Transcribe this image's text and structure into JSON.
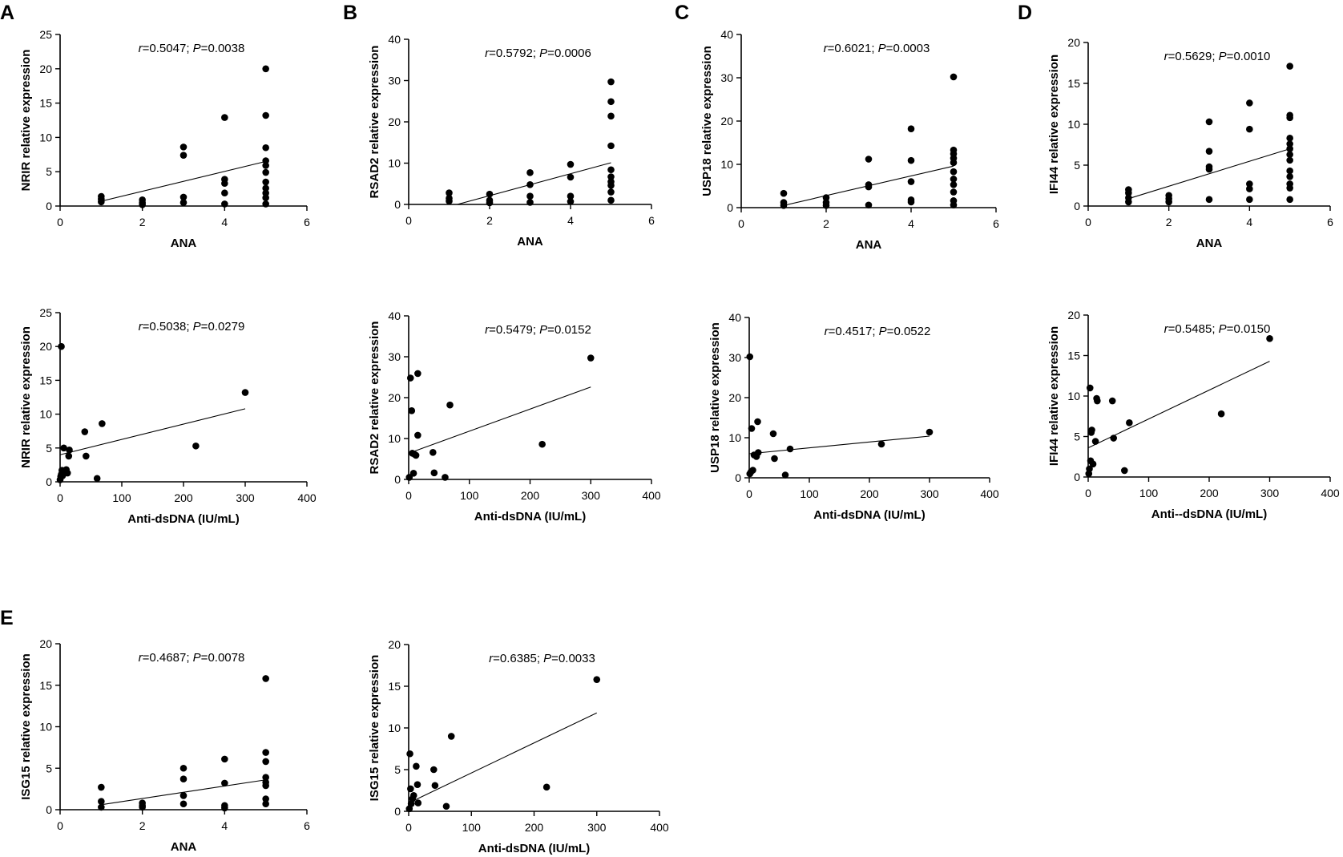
{
  "figure": {
    "panel_letters": [
      "A",
      "B",
      "C",
      "D",
      "E"
    ]
  },
  "chart_data": [
    {
      "id": "A-ana",
      "panel": "A",
      "type": "scatter",
      "ylabel": "NRIR relative expression",
      "xlabel": "ANA",
      "stat": {
        "r": "0.5047",
        "p": "0.0038"
      },
      "xlim": [
        0,
        6
      ],
      "ylim": [
        0,
        25
      ],
      "xticks": [
        0,
        2,
        4,
        6
      ],
      "yticks": [
        0,
        5,
        10,
        15,
        20,
        25
      ],
      "points": [
        [
          1,
          0.6
        ],
        [
          1,
          1.0
        ],
        [
          1,
          1.4
        ],
        [
          2,
          0.2
        ],
        [
          2,
          0.5
        ],
        [
          2,
          0.9
        ],
        [
          3,
          0.5
        ],
        [
          3,
          1.3
        ],
        [
          3,
          7.4
        ],
        [
          3,
          8.6
        ],
        [
          4,
          0.3
        ],
        [
          4,
          1.9
        ],
        [
          4,
          3.3
        ],
        [
          4,
          3.9
        ],
        [
          4,
          12.9
        ],
        [
          5,
          0.3
        ],
        [
          5,
          1.2
        ],
        [
          5,
          1.9
        ],
        [
          5,
          2.6
        ],
        [
          5,
          3.5
        ],
        [
          5,
          4.9
        ],
        [
          5,
          5.9
        ],
        [
          5,
          6.6
        ],
        [
          5,
          8.5
        ],
        [
          5,
          13.2
        ],
        [
          5,
          20.0
        ]
      ],
      "fit": [
        [
          1,
          0.7
        ],
        [
          5,
          6.5
        ]
      ]
    },
    {
      "id": "B-ana",
      "panel": "B",
      "type": "scatter",
      "ylabel": "RSAD2 relative expression",
      "xlabel": "ANA",
      "stat": {
        "r": "0.5792",
        "p": "0.0006"
      },
      "xlim": [
        0,
        6
      ],
      "ylim": [
        0,
        40
      ],
      "xticks": [
        0,
        2,
        4,
        6
      ],
      "yticks": [
        0,
        10,
        20,
        30,
        40
      ],
      "points": [
        [
          1,
          0.8
        ],
        [
          1,
          1.5
        ],
        [
          1,
          2.8
        ],
        [
          2,
          0.4
        ],
        [
          2,
          1.0
        ],
        [
          2,
          2.5
        ],
        [
          3,
          0.5
        ],
        [
          3,
          2.0
        ],
        [
          3,
          4.8
        ],
        [
          3,
          7.7
        ],
        [
          4,
          0.7
        ],
        [
          4,
          2.0
        ],
        [
          4,
          6.6
        ],
        [
          4,
          9.7
        ],
        [
          5,
          1.0
        ],
        [
          5,
          3.0
        ],
        [
          5,
          4.6
        ],
        [
          5,
          5.5
        ],
        [
          5,
          6.7
        ],
        [
          5,
          8.4
        ],
        [
          5,
          14.2
        ],
        [
          5,
          21.4
        ],
        [
          5,
          24.9
        ],
        [
          5,
          29.7
        ]
      ],
      "fit": [
        [
          1.2,
          0
        ],
        [
          5,
          10.1
        ]
      ]
    },
    {
      "id": "C-ana",
      "panel": "C",
      "type": "scatter",
      "ylabel": "USP18 relative expression",
      "xlabel": "ANA",
      "stat": {
        "r": "0.6021",
        "p": "0.0003"
      },
      "xlim": [
        0,
        6
      ],
      "ylim": [
        0,
        40
      ],
      "xticks": [
        0,
        2,
        4,
        6
      ],
      "yticks": [
        0,
        10,
        20,
        30,
        40
      ],
      "points": [
        [
          1,
          0.5
        ],
        [
          1,
          1.2
        ],
        [
          1,
          3.3
        ],
        [
          2,
          0.5
        ],
        [
          2,
          1.2
        ],
        [
          2,
          2.3
        ],
        [
          3,
          0.6
        ],
        [
          3,
          4.8
        ],
        [
          3,
          5.3
        ],
        [
          3,
          11.2
        ],
        [
          4,
          1.3
        ],
        [
          4,
          1.8
        ],
        [
          4,
          6.0
        ],
        [
          4,
          10.9
        ],
        [
          4,
          18.2
        ],
        [
          5,
          0.6
        ],
        [
          5,
          1.6
        ],
        [
          5,
          3.6
        ],
        [
          5,
          5.3
        ],
        [
          5,
          6.6
        ],
        [
          5,
          8.3
        ],
        [
          5,
          10.4
        ],
        [
          5,
          11.4
        ],
        [
          5,
          12.4
        ],
        [
          5,
          13.3
        ],
        [
          5,
          30.2
        ]
      ],
      "fit": [
        [
          1,
          0.5
        ],
        [
          5,
          9.6
        ]
      ]
    },
    {
      "id": "D-ana",
      "panel": "D",
      "type": "scatter",
      "ylabel": "IFI44 relative expression",
      "xlabel": "ANA",
      "stat": {
        "r": "0.5629",
        "p": "0.0010"
      },
      "xlim": [
        0,
        6
      ],
      "ylim": [
        0,
        20
      ],
      "xticks": [
        0,
        2,
        4,
        6
      ],
      "yticks": [
        0,
        5,
        10,
        15,
        20
      ],
      "points": [
        [
          1,
          0.5
        ],
        [
          1,
          1.0
        ],
        [
          1,
          1.6
        ],
        [
          1,
          2.0
        ],
        [
          2,
          0.5
        ],
        [
          2,
          0.9
        ],
        [
          2,
          1.3
        ],
        [
          3,
          0.8
        ],
        [
          3,
          4.5
        ],
        [
          3,
          4.8
        ],
        [
          3,
          6.7
        ],
        [
          3,
          10.3
        ],
        [
          4,
          0.8
        ],
        [
          4,
          2.1
        ],
        [
          4,
          2.7
        ],
        [
          4,
          9.4
        ],
        [
          4,
          12.6
        ],
        [
          5,
          0.8
        ],
        [
          5,
          2.2
        ],
        [
          5,
          2.7
        ],
        [
          5,
          3.6
        ],
        [
          5,
          4.3
        ],
        [
          5,
          5.6
        ],
        [
          5,
          6.3
        ],
        [
          5,
          7.0
        ],
        [
          5,
          7.6
        ],
        [
          5,
          8.3
        ],
        [
          5,
          10.8
        ],
        [
          5,
          11.1
        ],
        [
          5,
          17.1
        ]
      ],
      "fit": [
        [
          1,
          0.9
        ],
        [
          5,
          7.0
        ]
      ]
    },
    {
      "id": "A-dsdna",
      "panel": "A",
      "type": "scatter",
      "ylabel": "NRIR relative expression",
      "xlabel": "Anti-dsDNA (IU/mL)",
      "stat": {
        "r": "0.5038",
        "p": "0.0279"
      },
      "xlim": [
        0,
        400
      ],
      "ylim": [
        0,
        25
      ],
      "xticks": [
        0,
        100,
        200,
        300,
        400
      ],
      "yticks": [
        0,
        5,
        10,
        15,
        20,
        25
      ],
      "points": [
        [
          2,
          20.0
        ],
        [
          0,
          0.3
        ],
        [
          1,
          0.8
        ],
        [
          2,
          1.1
        ],
        [
          3,
          1.7
        ],
        [
          4,
          0.9
        ],
        [
          5,
          1.5
        ],
        [
          6,
          5.0
        ],
        [
          8,
          1.6
        ],
        [
          10,
          1.8
        ],
        [
          12,
          1.3
        ],
        [
          14,
          3.8
        ],
        [
          15,
          4.7
        ],
        [
          40,
          7.4
        ],
        [
          42,
          3.8
        ],
        [
          60,
          0.5
        ],
        [
          68,
          8.6
        ],
        [
          220,
          5.3
        ],
        [
          300,
          13.2
        ]
      ],
      "fit": [
        [
          0,
          4.0
        ],
        [
          300,
          10.8
        ]
      ]
    },
    {
      "id": "B-dsdna",
      "panel": "B",
      "type": "scatter",
      "ylabel": "RSAD2 relative expression",
      "xlabel": "Anti-dsDNA (IU/mL)",
      "stat": {
        "r": "0.5479",
        "p": "0.0152"
      },
      "xlim": [
        0,
        400
      ],
      "ylim": [
        0,
        40
      ],
      "xticks": [
        0,
        100,
        200,
        300,
        400
      ],
      "yticks": [
        0,
        10,
        20,
        30,
        40
      ],
      "points": [
        [
          1,
          0.5
        ],
        [
          3,
          24.8
        ],
        [
          5,
          16.8
        ],
        [
          6,
          6.4
        ],
        [
          8,
          1.5
        ],
        [
          10,
          6.1
        ],
        [
          12,
          5.9
        ],
        [
          15,
          10.8
        ],
        [
          15,
          25.9
        ],
        [
          40,
          6.6
        ],
        [
          42,
          1.6
        ],
        [
          60,
          0.5
        ],
        [
          68,
          18.2
        ],
        [
          220,
          8.6
        ],
        [
          300,
          29.7
        ]
      ],
      "fit": [
        [
          0,
          6.4
        ],
        [
          300,
          22.6
        ]
      ]
    },
    {
      "id": "C-dsdna",
      "panel": "C",
      "type": "scatter",
      "ylabel": "USP18 relative expression",
      "xlabel": "Anti-dsDNA (IU/mL)",
      "stat": {
        "r": "0.4517",
        "p": "0.0522"
      },
      "xlim": [
        0,
        400
      ],
      "ylim": [
        0,
        40
      ],
      "xticks": [
        0,
        100,
        200,
        300,
        400
      ],
      "yticks": [
        0,
        10,
        20,
        30,
        40
      ],
      "points": [
        [
          1,
          30.2
        ],
        [
          1,
          1.0
        ],
        [
          3,
          1.5
        ],
        [
          4,
          12.3
        ],
        [
          6,
          1.9
        ],
        [
          8,
          5.7
        ],
        [
          12,
          5.3
        ],
        [
          14,
          14.0
        ],
        [
          15,
          6.3
        ],
        [
          40,
          11.0
        ],
        [
          42,
          4.8
        ],
        [
          60,
          0.7
        ],
        [
          68,
          7.2
        ],
        [
          220,
          8.4
        ],
        [
          300,
          11.4
        ]
      ],
      "fit": [
        [
          0,
          6.0
        ],
        [
          300,
          10.4
        ]
      ]
    },
    {
      "id": "D-dsdna",
      "panel": "D",
      "type": "scatter",
      "ylabel": "IFI44 relative expression",
      "xlabel": "Anti--dsDNA (IU/mL)",
      "stat": {
        "r": "0.5485",
        "p": "0.0150"
      },
      "xlim": [
        0,
        400
      ],
      "ylim": [
        0,
        20
      ],
      "xticks": [
        0,
        100,
        200,
        300,
        400
      ],
      "yticks": [
        0,
        5,
        10,
        15,
        20
      ],
      "points": [
        [
          1,
          0.4
        ],
        [
          2,
          1.0
        ],
        [
          3,
          11.0
        ],
        [
          4,
          2.0
        ],
        [
          5,
          5.5
        ],
        [
          6,
          5.8
        ],
        [
          8,
          1.6
        ],
        [
          12,
          4.4
        ],
        [
          14,
          9.7
        ],
        [
          15,
          9.4
        ],
        [
          40,
          9.4
        ],
        [
          42,
          4.8
        ],
        [
          60,
          0.8
        ],
        [
          68,
          6.7
        ],
        [
          220,
          7.8
        ],
        [
          300,
          17.1
        ]
      ],
      "fit": [
        [
          0,
          3.6
        ],
        [
          300,
          14.3
        ]
      ]
    },
    {
      "id": "E-ana",
      "panel": "E",
      "type": "scatter",
      "ylabel": "ISG15 relative expression",
      "xlabel": "ANA",
      "stat": {
        "r": "0.4687",
        "p": "0.0078"
      },
      "xlim": [
        0,
        6
      ],
      "ylim": [
        0,
        20
      ],
      "xticks": [
        0,
        2,
        4,
        6
      ],
      "yticks": [
        0,
        5,
        10,
        15,
        20
      ],
      "points": [
        [
          1,
          0.3
        ],
        [
          1,
          1.0
        ],
        [
          1,
          2.7
        ],
        [
          2,
          0.3
        ],
        [
          2,
          0.5
        ],
        [
          2,
          0.8
        ],
        [
          3,
          0.7
        ],
        [
          3,
          1.7
        ],
        [
          3,
          3.7
        ],
        [
          3,
          5.0
        ],
        [
          4,
          0.2
        ],
        [
          4,
          0.5
        ],
        [
          4,
          3.2
        ],
        [
          4,
          6.1
        ],
        [
          5,
          0.7
        ],
        [
          5,
          1.3
        ],
        [
          5,
          2.9
        ],
        [
          5,
          3.3
        ],
        [
          5,
          3.9
        ],
        [
          5,
          5.8
        ],
        [
          5,
          6.9
        ],
        [
          5,
          15.8
        ]
      ],
      "fit": [
        [
          1,
          0.6
        ],
        [
          5,
          3.6
        ]
      ]
    },
    {
      "id": "E-dsdna",
      "panel": "E",
      "type": "scatter",
      "ylabel": "ISG15 relative expression",
      "xlabel": "Anti-dsDNA (IU/mL)",
      "stat": {
        "r": "0.6385",
        "p": "0.0033"
      },
      "xlim": [
        0,
        400
      ],
      "ylim": [
        0,
        20
      ],
      "xticks": [
        0,
        100,
        200,
        300,
        400
      ],
      "yticks": [
        0,
        5,
        10,
        15,
        20
      ],
      "points": [
        [
          1,
          0.3
        ],
        [
          2,
          6.9
        ],
        [
          3,
          2.7
        ],
        [
          4,
          0.9
        ],
        [
          6,
          1.5
        ],
        [
          8,
          1.9
        ],
        [
          12,
          5.4
        ],
        [
          14,
          3.2
        ],
        [
          15,
          1.0
        ],
        [
          40,
          5.0
        ],
        [
          42,
          3.1
        ],
        [
          60,
          0.6
        ],
        [
          68,
          9.0
        ],
        [
          220,
          2.9
        ],
        [
          300,
          15.8
        ]
      ],
      "fit": [
        [
          0,
          1.0
        ],
        [
          300,
          11.8
        ]
      ]
    }
  ]
}
